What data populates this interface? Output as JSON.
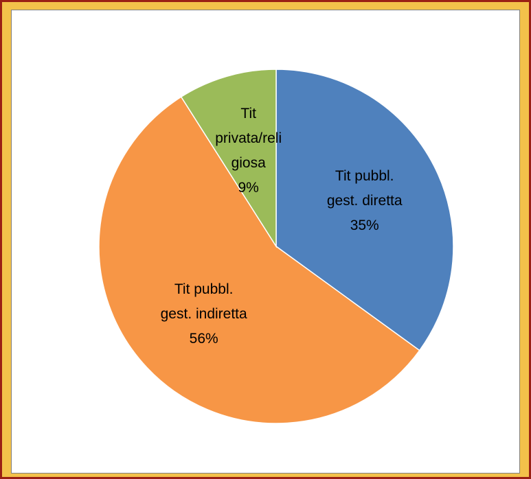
{
  "chart_data": {
    "type": "pie",
    "categories": [
      "Tit pubbl. gest. diretta",
      "Tit pubbl. gest. indiretta",
      "Tit privata/religiosa"
    ],
    "values": [
      35,
      56,
      9
    ],
    "value_labels": [
      "35%",
      "56%",
      "9%"
    ],
    "colors": [
      "#4f81bd",
      "#f79646",
      "#9bbb59"
    ]
  }
}
